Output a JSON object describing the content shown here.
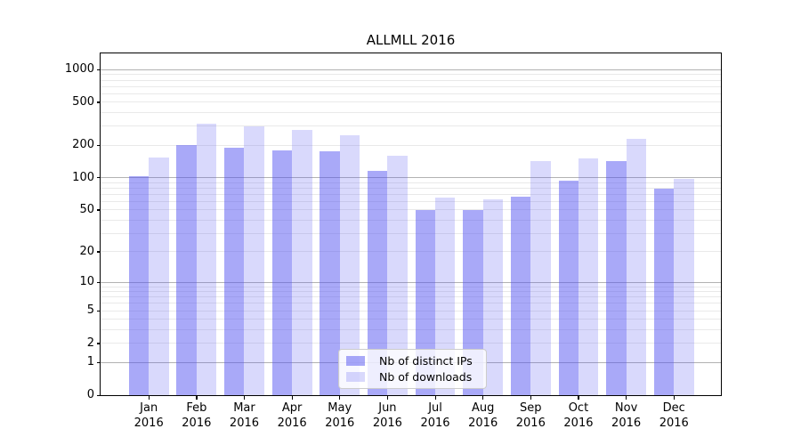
{
  "title": "ALLMLL 2016",
  "chart_data": {
    "type": "bar",
    "title": "ALLMLL 2016",
    "yscale": "symlog (log1p)",
    "months": [
      "Jan",
      "Feb",
      "Mar",
      "Apr",
      "May",
      "Jun",
      "Jul",
      "Aug",
      "Sep",
      "Oct",
      "Nov",
      "Dec"
    ],
    "year": "2016",
    "categories": [
      "Jan 2016",
      "Feb 2016",
      "Mar 2016",
      "Apr 2016",
      "May 2016",
      "Jun 2016",
      "Jul 2016",
      "Aug 2016",
      "Sep 2016",
      "Oct 2016",
      "Nov 2016",
      "Dec 2016"
    ],
    "series": [
      {
        "name": "Nb of distinct IPs",
        "color": "#5050f0",
        "alpha": 0.49,
        "effective_color": "#a9a9f7",
        "values": [
          103,
          200,
          190,
          180,
          175,
          115,
          50,
          50,
          67,
          94,
          142,
          79
        ]
      },
      {
        "name": "Nb of downloads",
        "color": "#5050f0",
        "alpha": 0.22,
        "effective_color": "#d9d9f8",
        "values": [
          155,
          315,
          300,
          275,
          250,
          160,
          65,
          63,
          143,
          150,
          230,
          97
        ]
      }
    ],
    "y_tick_labels": [
      "1000",
      "500",
      "200",
      "100",
      "50",
      "20",
      "10",
      "5",
      "2",
      "1",
      "0"
    ],
    "y_tick_values": [
      1000,
      500,
      200,
      100,
      50,
      20,
      10,
      5,
      2,
      1,
      0
    ],
    "y_major_gridlines": [
      1,
      10,
      100,
      1000
    ],
    "y_minor_gridlines": [
      2,
      3,
      4,
      5,
      6,
      7,
      8,
      9,
      20,
      30,
      40,
      50,
      60,
      70,
      80,
      90,
      200,
      300,
      400,
      500,
      600,
      700,
      800,
      900
    ],
    "ylim": [
      0,
      1417
    ],
    "grid": true,
    "legend_position": "lower center"
  },
  "colors": {
    "grid_major": "#b2b2b2",
    "grid_minor": "#e9e9e9",
    "spine": "#000000",
    "background": "#ffffff"
  }
}
